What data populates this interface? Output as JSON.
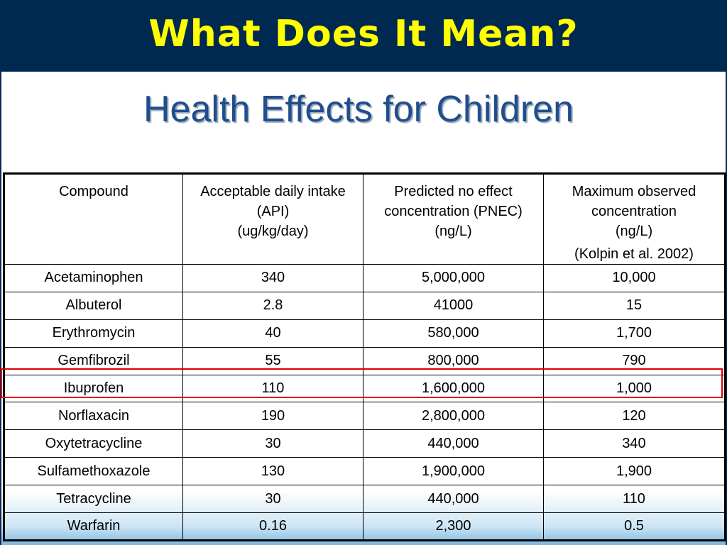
{
  "slide": {
    "title": "What Does It Mean?",
    "subtitle": "Health Effects for Children"
  },
  "table": {
    "headers": {
      "compound": "Compound",
      "adi_l1": "Acceptable daily intake",
      "adi_l2": "(API)",
      "adi_l3": "(ug/kg/day)",
      "pnec_l1": "Predicted no effect",
      "pnec_l2": "concentration (PNEC)",
      "pnec_l3": "(ng/L)",
      "max_l1": "Maximum observed",
      "max_l2": "concentration",
      "max_l3": "(ng/L)",
      "max_cite": "(Kolpin et al. 2002)"
    },
    "rows": [
      [
        "Acetaminophen",
        "340",
        "5,000,000",
        "10,000"
      ],
      [
        "Albuterol",
        "2.8",
        "41000",
        "15"
      ],
      [
        "Erythromycin",
        "40",
        "580,000",
        "1,700"
      ],
      [
        "Gemfibrozil",
        "55",
        "800,000",
        "790"
      ],
      [
        "Ibuprofen",
        "110",
        "1,600,000",
        "1,000"
      ],
      [
        "Norflaxacin",
        "190",
        "2,800,000",
        "120"
      ],
      [
        "Oxytetracycline",
        "30",
        "440,000",
        "340"
      ],
      [
        "Sulfamethoxazole",
        "130",
        "1,900,000",
        "1,900"
      ],
      [
        "Tetracycline",
        "30",
        "440,000",
        "110"
      ],
      [
        "Warfarin",
        "0.16",
        "2,300",
        "0.5"
      ]
    ],
    "highlighted_row_index": 4
  },
  "colors": {
    "header_bg": "#002951",
    "title_color": "#ffff00",
    "subtitle_color": "#1f4e8c",
    "highlight_border": "#e00000"
  }
}
